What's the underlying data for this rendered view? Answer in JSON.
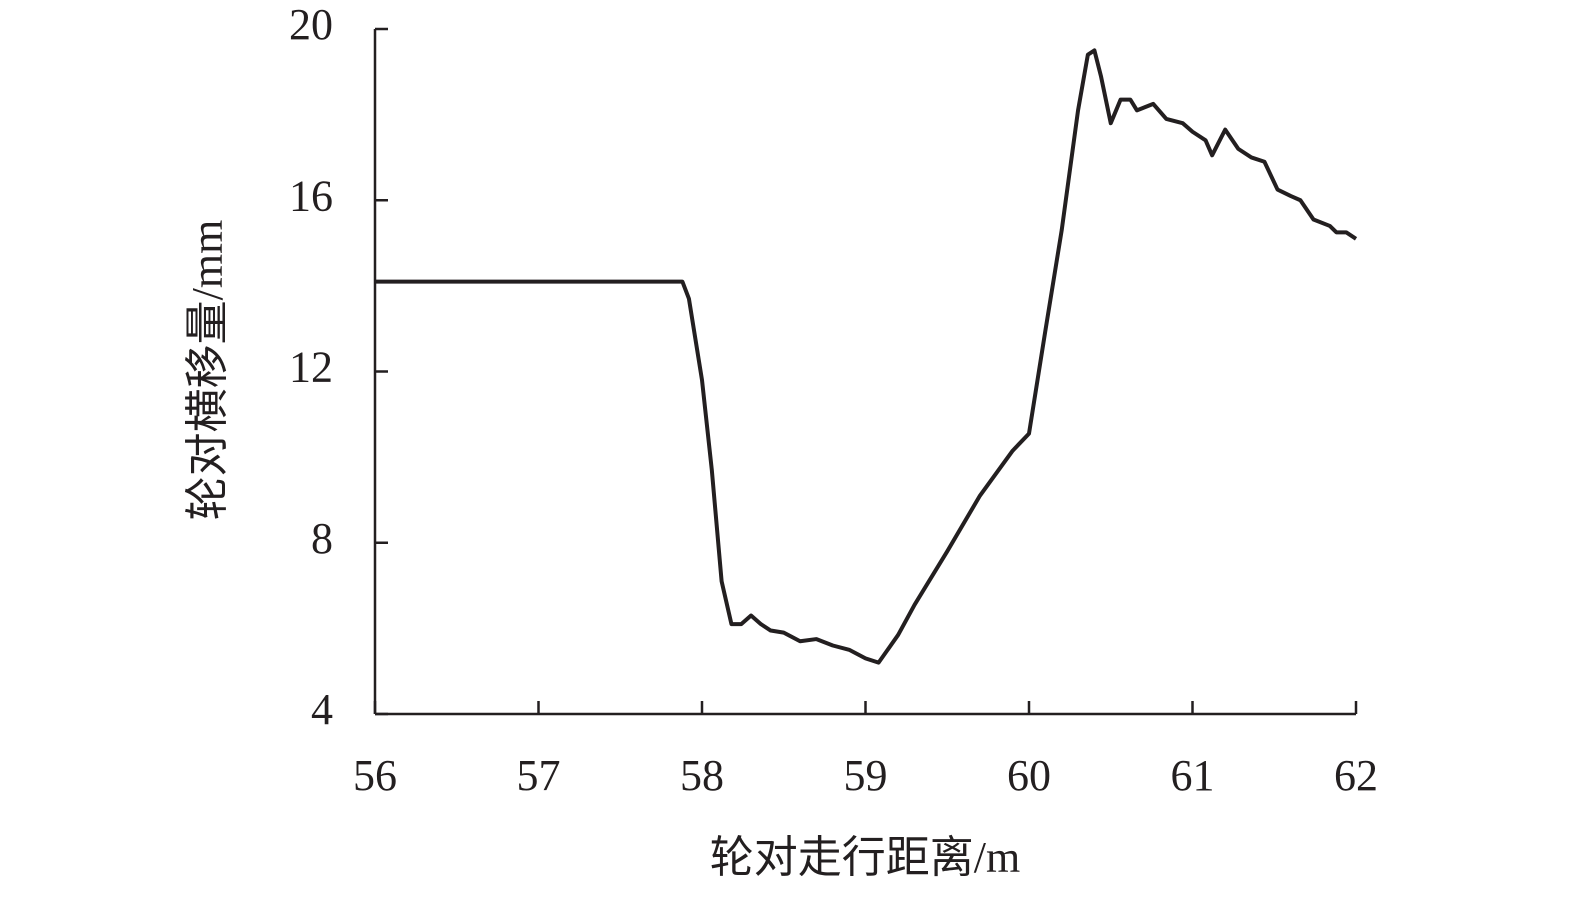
{
  "chart_data": {
    "type": "line",
    "xlabel": "轮对走行距离/m",
    "ylabel": "轮对横移量/mm",
    "x": [
      56,
      57.88,
      57.92,
      58.0,
      58.06,
      58.12,
      58.18,
      58.24,
      58.3,
      58.36,
      58.42,
      58.5,
      58.6,
      58.7,
      58.8,
      58.9,
      59.0,
      59.08,
      59.2,
      59.3,
      59.5,
      59.7,
      59.9,
      60.0,
      60.1,
      60.2,
      60.3,
      60.36,
      60.4,
      60.44,
      60.5,
      60.56,
      60.62,
      60.66,
      60.76,
      60.84,
      60.94,
      61.0,
      61.08,
      61.12,
      61.2,
      61.28,
      61.36,
      61.44,
      61.52,
      61.6,
      61.66,
      61.74,
      61.84,
      61.88,
      61.94,
      62.0
    ],
    "series": [
      {
        "color": "#231f20",
        "values": [
          14.1,
          14.1,
          13.7,
          11.8,
          9.7,
          7.1,
          6.1,
          6.1,
          6.3,
          6.1,
          5.95,
          5.9,
          5.7,
          5.75,
          5.6,
          5.5,
          5.3,
          5.2,
          5.85,
          6.55,
          7.8,
          9.1,
          10.15,
          10.55,
          12.95,
          15.3,
          18.1,
          19.4,
          19.5,
          18.9,
          17.8,
          18.35,
          18.35,
          18.1,
          18.25,
          17.9,
          17.8,
          17.6,
          17.4,
          17.05,
          17.65,
          17.2,
          17.0,
          16.9,
          16.25,
          16.1,
          16.0,
          15.55,
          15.4,
          15.25,
          15.25,
          15.1
        ]
      }
    ],
    "xlim": [
      56,
      62
    ],
    "xticks": [
      56,
      57,
      58,
      59,
      60,
      61,
      62
    ],
    "ylim": [
      4,
      20
    ],
    "yticks": [
      4,
      8,
      12,
      16,
      20
    ]
  }
}
